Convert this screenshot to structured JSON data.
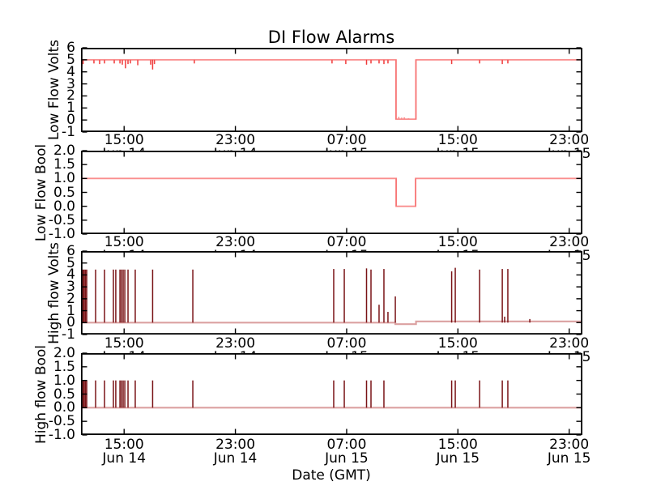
{
  "chart_data": {
    "type": "line",
    "title": "DI Flow Alarms",
    "xlabel": "Date (GMT)",
    "x_unit": "hours since Jun 14 00:00 GMT",
    "xlim": [
      11.9,
      47.95
    ],
    "grid": false,
    "legend": "none",
    "x_ticks": [
      {
        "hour": 15,
        "time": "15:00",
        "date": "Jun 14"
      },
      {
        "hour": 23,
        "time": "23:00",
        "date": "Jun 14"
      },
      {
        "hour": 31,
        "time": "07:00",
        "date": "Jun 15"
      },
      {
        "hour": 39,
        "time": "15:00",
        "date": "Jun 15"
      },
      {
        "hour": 47,
        "time": "23:00",
        "date": "Jun 15"
      }
    ],
    "colors": {
      "level_line": "#fa8e8e",
      "noise_tick": "#ee3b3b",
      "outage_edge": "#f76f6f",
      "baseline_pale": "#dba1a1",
      "spike_dark": "#7a1417",
      "frame": "#000000",
      "text": "#000000"
    },
    "subplots": [
      {
        "name": "low-flow-volts",
        "ylabel": "Low Flow Volts",
        "type": "level",
        "ylim": [
          -1,
          6
        ],
        "yticks": [
          {
            "v": 6,
            "label": "6"
          },
          {
            "v": 5,
            "label": "5"
          },
          {
            "v": 4,
            "label": "4"
          },
          {
            "v": 3,
            "label": "3"
          },
          {
            "v": 2,
            "label": "2"
          },
          {
            "v": 1,
            "label": "1"
          },
          {
            "v": 0,
            "label": "0"
          },
          {
            "v": -1,
            "label": "-1"
          }
        ],
        "base": 5.0,
        "dips": [
          [
            11.96,
            0.55
          ],
          [
            12.05,
            0.35
          ],
          [
            12.83,
            0.3
          ],
          [
            13.24,
            0.35
          ],
          [
            13.59,
            0.3
          ],
          [
            14.29,
            0.3
          ],
          [
            14.7,
            0.3
          ],
          [
            14.87,
            0.4
          ],
          [
            15.1,
            0.7
          ],
          [
            15.28,
            0.35
          ],
          [
            15.45,
            0.3
          ],
          [
            15.98,
            0.45
          ],
          [
            16.91,
            0.4
          ],
          [
            17.05,
            0.8
          ],
          [
            17.18,
            0.35
          ],
          [
            20.05,
            0.3
          ],
          [
            29.95,
            0.3
          ],
          [
            30.94,
            0.35
          ],
          [
            32.43,
            0.4
          ],
          [
            32.75,
            0.3
          ],
          [
            33.33,
            0.3
          ],
          [
            33.68,
            0.35
          ],
          [
            33.97,
            0.3
          ],
          [
            38.55,
            0.35
          ],
          [
            40.56,
            0.3
          ],
          [
            42.19,
            0.35
          ],
          [
            42.59,
            0.3
          ]
        ],
        "outage": {
          "start": 34.55,
          "end": 35.98,
          "level": 0.07,
          "noise": [
            [
              34.75,
              0.25
            ],
            [
              34.95,
              0.2
            ],
            [
              35.15,
              0.22
            ],
            [
              35.45,
              0.15
            ]
          ]
        }
      },
      {
        "name": "low-flow-bool",
        "ylabel": "Low Flow Bool",
        "type": "level",
        "ylim": [
          -1,
          2
        ],
        "yticks": [
          {
            "v": 2,
            "label": "2.0"
          },
          {
            "v": 1.5,
            "label": "1.5"
          },
          {
            "v": 1,
            "label": "1.0"
          },
          {
            "v": 0.5,
            "label": "0.5"
          },
          {
            "v": 0,
            "label": "0.0"
          },
          {
            "v": -0.5,
            "label": "-0.5"
          },
          {
            "v": -1,
            "label": "-1.0"
          }
        ],
        "base": 1.0,
        "dips": [],
        "outage": {
          "start": 34.56,
          "end": 35.96,
          "level": 0.0,
          "noise": []
        }
      },
      {
        "name": "high-flow-volts",
        "ylabel": "High flow Volts",
        "type": "spike",
        "ylim": [
          -1,
          6
        ],
        "yticks": [
          {
            "v": 6,
            "label": "6"
          },
          {
            "v": 5,
            "label": "5"
          },
          {
            "v": 4,
            "label": "4"
          },
          {
            "v": 3,
            "label": "3"
          },
          {
            "v": 2,
            "label": "2"
          },
          {
            "v": 1,
            "label": "1"
          },
          {
            "v": 0,
            "label": "0"
          },
          {
            "v": -1,
            "label": "-1"
          }
        ],
        "baseline": [
          [
            11.9,
            0
          ],
          [
            34.5,
            0
          ],
          [
            34.5,
            -0.13
          ],
          [
            35.99,
            -0.13
          ],
          [
            35.99,
            0.1
          ],
          [
            47.95,
            0.1
          ]
        ],
        "spikes": [
          [
            11.96,
            4.45
          ],
          [
            12.05,
            4.45
          ],
          [
            12.13,
            4.45
          ],
          [
            12.22,
            4.45
          ],
          [
            12.31,
            4.45
          ],
          [
            12.95,
            4.45
          ],
          [
            13.59,
            4.45
          ],
          [
            14.23,
            4.45
          ],
          [
            14.4,
            4.45
          ],
          [
            14.7,
            4.45
          ],
          [
            14.81,
            4.45
          ],
          [
            14.93,
            4.45
          ],
          [
            15.05,
            4.45
          ],
          [
            15.28,
            4.45
          ],
          [
            15.8,
            4.45
          ],
          [
            17.05,
            4.45
          ],
          [
            19.94,
            4.45
          ],
          [
            30.07,
            4.5
          ],
          [
            30.83,
            4.5
          ],
          [
            32.43,
            4.55
          ],
          [
            32.75,
            4.45
          ],
          [
            33.33,
            1.5
          ],
          [
            33.68,
            4.5
          ],
          [
            33.97,
            0.9
          ],
          [
            34.5,
            2.2
          ],
          [
            38.55,
            4.3
          ],
          [
            38.81,
            4.6
          ],
          [
            40.56,
            4.45
          ],
          [
            42.19,
            4.5
          ],
          [
            42.36,
            0.5
          ],
          [
            42.59,
            4.5
          ],
          [
            44.17,
            0.3
          ]
        ]
      },
      {
        "name": "high-flow-bool",
        "ylabel": "High flow Bool",
        "type": "spike",
        "ylim": [
          -1,
          2
        ],
        "yticks": [
          {
            "v": 2,
            "label": "2.0"
          },
          {
            "v": 1.5,
            "label": "1.5"
          },
          {
            "v": 1,
            "label": "1.0"
          },
          {
            "v": 0.5,
            "label": "0.5"
          },
          {
            "v": 0,
            "label": "0.0"
          },
          {
            "v": -0.5,
            "label": "-0.5"
          },
          {
            "v": -1,
            "label": "-1.0"
          }
        ],
        "baseline": [
          [
            11.9,
            0
          ],
          [
            47.95,
            0
          ]
        ],
        "spikes": [
          [
            11.96,
            1
          ],
          [
            12.05,
            1
          ],
          [
            12.13,
            1
          ],
          [
            12.22,
            1
          ],
          [
            12.31,
            1
          ],
          [
            12.95,
            1
          ],
          [
            13.59,
            1
          ],
          [
            14.23,
            1
          ],
          [
            14.4,
            1
          ],
          [
            14.7,
            1
          ],
          [
            14.81,
            1
          ],
          [
            14.93,
            1
          ],
          [
            15.05,
            1
          ],
          [
            15.28,
            1
          ],
          [
            15.8,
            1
          ],
          [
            17.05,
            1
          ],
          [
            19.94,
            1
          ],
          [
            30.07,
            1
          ],
          [
            30.83,
            1
          ],
          [
            32.43,
            1
          ],
          [
            32.75,
            1
          ],
          [
            33.68,
            1
          ],
          [
            38.55,
            1
          ],
          [
            38.81,
            1
          ],
          [
            40.56,
            1
          ],
          [
            42.19,
            1
          ],
          [
            42.59,
            1
          ]
        ]
      }
    ]
  }
}
